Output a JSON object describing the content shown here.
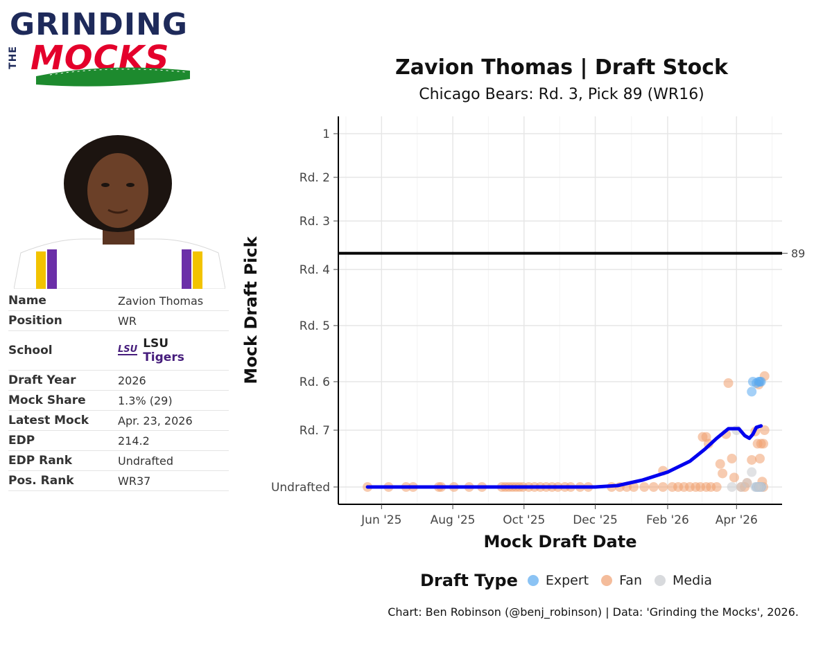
{
  "logo": {
    "line1": "GRINDING",
    "line2": "THE",
    "line3": "MOCKS",
    "colors": {
      "navy": "#1e2a5a",
      "red": "#e4002b",
      "green": "#1d8a2e"
    }
  },
  "player": {
    "photo_icon": "player-headshot",
    "rows": [
      {
        "label": "Name",
        "value": "Zavion Thomas"
      },
      {
        "label": "Position",
        "value": "WR"
      },
      {
        "label": "School",
        "value": ""
      },
      {
        "label": "Draft Year",
        "value": "2026"
      },
      {
        "label": "Mock Share",
        "value": "1.3% (29)"
      },
      {
        "label": "Latest Mock",
        "value": "Apr. 23, 2026"
      },
      {
        "label": "EDP",
        "value": "214.2"
      },
      {
        "label": "EDP Rank",
        "value": "Undrafted"
      },
      {
        "label": "Pos. Rank",
        "value": "WR37"
      }
    ],
    "school": {
      "logo_text": "LSU",
      "name_line1": "LSU",
      "name_line2": "Tigers",
      "color": "#461d7c"
    }
  },
  "chart_data": {
    "type": "scatter",
    "title": "Zavion Thomas | Draft Stock",
    "subtitle": "Chicago Bears: Rd. 3, Pick 89 (WR16)",
    "xlabel": "Mock Draft Date",
    "ylabel": "Mock Draft Pick",
    "x_ticks": [
      "Jun '25",
      "Aug '25",
      "Oct '25",
      "Dec '25",
      "Feb '26",
      "Apr '26"
    ],
    "x_tick_dates": [
      "2025-06-01",
      "2025-08-01",
      "2025-10-01",
      "2025-12-01",
      "2026-02-01",
      "2026-04-01"
    ],
    "xlim": [
      "2025-04-25",
      "2026-05-10"
    ],
    "y_ticks": [
      {
        "label": "1",
        "pick": 1
      },
      {
        "label": "Rd. 2",
        "pick": 33
      },
      {
        "label": "Rd. 3",
        "pick": 65
      },
      {
        "label": "Rd. 4",
        "pick": 101
      },
      {
        "label": "Rd. 5",
        "pick": 141
      },
      {
        "label": "Rd. 6",
        "pick": 181
      },
      {
        "label": "Rd. 7",
        "pick": 215
      },
      {
        "label": "Undrafted",
        "pick": 257
      }
    ],
    "y_reversed": true,
    "ylim": [
      -10,
      270
    ],
    "grid": true,
    "reference_line": {
      "pick": 89,
      "label": "89"
    },
    "legend": {
      "title": "Draft Type",
      "position": "bottom",
      "items": [
        {
          "name": "Expert",
          "color": "#5aa9f0"
        },
        {
          "name": "Fan",
          "color": "#f0a070"
        },
        {
          "name": "Media",
          "color": "#c8cace"
        }
      ]
    },
    "series": [
      {
        "name": "Fan",
        "color": "#f0a070",
        "points": [
          [
            "2025-05-20",
            257
          ],
          [
            "2025-06-07",
            257
          ],
          [
            "2025-06-22",
            257
          ],
          [
            "2025-06-28",
            257
          ],
          [
            "2025-07-20",
            257
          ],
          [
            "2025-07-22",
            257
          ],
          [
            "2025-08-02",
            257
          ],
          [
            "2025-08-15",
            257
          ],
          [
            "2025-08-26",
            257
          ],
          [
            "2025-09-12",
            257
          ],
          [
            "2025-09-15",
            257
          ],
          [
            "2025-09-18",
            257
          ],
          [
            "2025-09-21",
            257
          ],
          [
            "2025-09-24",
            257
          ],
          [
            "2025-09-27",
            257
          ],
          [
            "2025-09-30",
            257
          ],
          [
            "2025-10-05",
            257
          ],
          [
            "2025-10-10",
            257
          ],
          [
            "2025-10-15",
            257
          ],
          [
            "2025-10-20",
            257
          ],
          [
            "2025-10-25",
            257
          ],
          [
            "2025-10-30",
            257
          ],
          [
            "2025-11-05",
            257
          ],
          [
            "2025-11-10",
            257
          ],
          [
            "2025-11-18",
            257
          ],
          [
            "2025-11-25",
            257
          ],
          [
            "2025-12-15",
            257
          ],
          [
            "2025-12-22",
            257
          ],
          [
            "2025-12-28",
            257
          ],
          [
            "2026-01-03",
            257
          ],
          [
            "2026-01-12",
            257
          ],
          [
            "2026-01-20",
            257
          ],
          [
            "2026-01-28",
            257
          ],
          [
            "2026-02-05",
            257
          ],
          [
            "2026-02-10",
            257
          ],
          [
            "2026-02-15",
            257
          ],
          [
            "2026-02-20",
            257
          ],
          [
            "2026-02-25",
            257
          ],
          [
            "2026-03-01",
            257
          ],
          [
            "2026-03-06",
            257
          ],
          [
            "2026-03-10",
            257
          ],
          [
            "2026-03-15",
            257
          ],
          [
            "2026-01-28",
            245
          ],
          [
            "2026-03-03",
            220
          ],
          [
            "2026-03-06",
            220
          ],
          [
            "2026-03-08",
            225
          ],
          [
            "2026-03-18",
            240
          ],
          [
            "2026-03-20",
            247
          ],
          [
            "2026-03-23",
            218
          ],
          [
            "2026-03-25",
            182
          ],
          [
            "2026-03-28",
            236
          ],
          [
            "2026-03-30",
            250
          ],
          [
            "2026-04-05",
            257
          ],
          [
            "2026-04-08",
            257
          ],
          [
            "2026-04-10",
            254
          ],
          [
            "2026-04-14",
            237
          ],
          [
            "2026-04-17",
            216
          ],
          [
            "2026-04-19",
            225
          ],
          [
            "2026-04-20",
            183
          ],
          [
            "2026-04-21",
            236
          ],
          [
            "2026-04-22",
            225
          ],
          [
            "2026-04-23",
            253
          ],
          [
            "2026-04-24",
            225
          ],
          [
            "2026-04-24",
            257
          ],
          [
            "2026-04-25",
            177
          ],
          [
            "2026-04-25",
            215
          ]
        ]
      },
      {
        "name": "Expert",
        "color": "#5aa9f0",
        "points": [
          [
            "2026-04-15",
            181
          ],
          [
            "2026-04-14",
            188
          ],
          [
            "2026-04-18",
            182
          ],
          [
            "2026-04-20",
            181
          ],
          [
            "2026-04-21",
            181
          ],
          [
            "2026-04-22",
            181
          ],
          [
            "2026-04-18",
            257
          ],
          [
            "2026-04-20",
            257
          ],
          [
            "2026-04-22",
            257
          ]
        ]
      },
      {
        "name": "Media",
        "color": "#c8cace",
        "points": [
          [
            "2026-03-28",
            257
          ],
          [
            "2026-04-01",
            215
          ],
          [
            "2026-04-05",
            257
          ],
          [
            "2026-04-10",
            254
          ],
          [
            "2026-04-14",
            246
          ],
          [
            "2026-04-17",
            257
          ],
          [
            "2026-04-19",
            257
          ],
          [
            "2026-04-21",
            257
          ],
          [
            "2026-04-23",
            257
          ]
        ]
      }
    ],
    "trend_line": {
      "color": "#0000ee",
      "points": [
        [
          "2025-05-20",
          257
        ],
        [
          "2025-09-01",
          257
        ],
        [
          "2025-12-01",
          257
        ],
        [
          "2025-12-20",
          256
        ],
        [
          "2026-01-10",
          252
        ],
        [
          "2026-02-01",
          246
        ],
        [
          "2026-02-20",
          238
        ],
        [
          "2026-03-05",
          229
        ],
        [
          "2026-03-15",
          221
        ],
        [
          "2026-03-25",
          214
        ],
        [
          "2026-04-03",
          214
        ],
        [
          "2026-04-08",
          219
        ],
        [
          "2026-04-12",
          221
        ],
        [
          "2026-04-15",
          218
        ],
        [
          "2026-04-18",
          213
        ],
        [
          "2026-04-22",
          212
        ]
      ]
    }
  },
  "caption": "Chart: Ben Robinson (@benj_robinson) | Data: 'Grinding the Mocks', 2026."
}
